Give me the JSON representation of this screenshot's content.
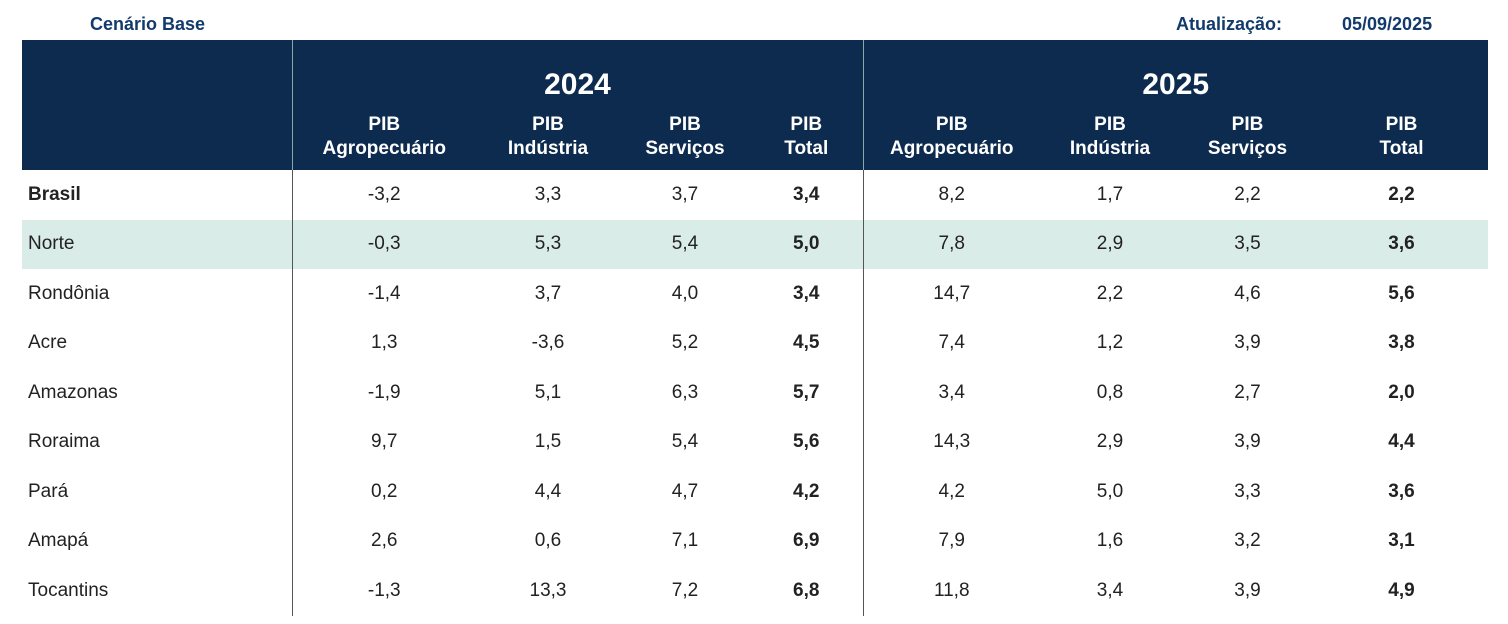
{
  "header": {
    "scenario": "Cenário Base",
    "update_label": "Atualização:",
    "update_date": "05/09/2025"
  },
  "years": [
    "2024",
    "2025"
  ],
  "columns": [
    [
      "PIB",
      "Agropecuário"
    ],
    [
      "PIB",
      "Indústria"
    ],
    [
      "PIB",
      "Serviços"
    ],
    [
      "PIB",
      "Total"
    ],
    [
      "PIB",
      "Agropecuário"
    ],
    [
      "PIB",
      "Indústria"
    ],
    [
      "PIB",
      "Serviços"
    ],
    [
      "PIB",
      "Total"
    ]
  ],
  "rows": [
    {
      "name": "Brasil",
      "values": [
        "-3,2",
        "3,3",
        "3,7",
        "3,4",
        "8,2",
        "1,7",
        "2,2",
        "2,2"
      ]
    },
    {
      "name": "Norte",
      "values": [
        "-0,3",
        "5,3",
        "5,4",
        "5,0",
        "7,8",
        "2,9",
        "3,5",
        "3,6"
      ]
    },
    {
      "name": "Rondônia",
      "values": [
        "-1,4",
        "3,7",
        "4,0",
        "3,4",
        "14,7",
        "2,2",
        "4,6",
        "5,6"
      ]
    },
    {
      "name": "Acre",
      "values": [
        "1,3",
        "-3,6",
        "5,2",
        "4,5",
        "7,4",
        "1,2",
        "3,9",
        "3,8"
      ]
    },
    {
      "name": "Amazonas",
      "values": [
        "-1,9",
        "5,1",
        "6,3",
        "5,7",
        "3,4",
        "0,8",
        "2,7",
        "2,0"
      ]
    },
    {
      "name": "Roraima",
      "values": [
        "9,7",
        "1,5",
        "5,4",
        "5,6",
        "14,3",
        "2,9",
        "3,9",
        "4,4"
      ]
    },
    {
      "name": "Pará",
      "values": [
        "0,2",
        "4,4",
        "4,7",
        "4,2",
        "4,2",
        "5,0",
        "3,3",
        "3,6"
      ]
    },
    {
      "name": "Amapá",
      "values": [
        "2,6",
        "0,6",
        "7,1",
        "6,9",
        "7,9",
        "1,6",
        "3,2",
        "3,1"
      ]
    },
    {
      "name": "Tocantins",
      "values": [
        "-1,3",
        "13,3",
        "7,2",
        "6,8",
        "11,8",
        "3,4",
        "3,9",
        "4,9"
      ]
    }
  ],
  "colors": {
    "header_bg": "#0d2b4e",
    "highlight_row": "#d9ece8",
    "title": "#123a6b"
  }
}
